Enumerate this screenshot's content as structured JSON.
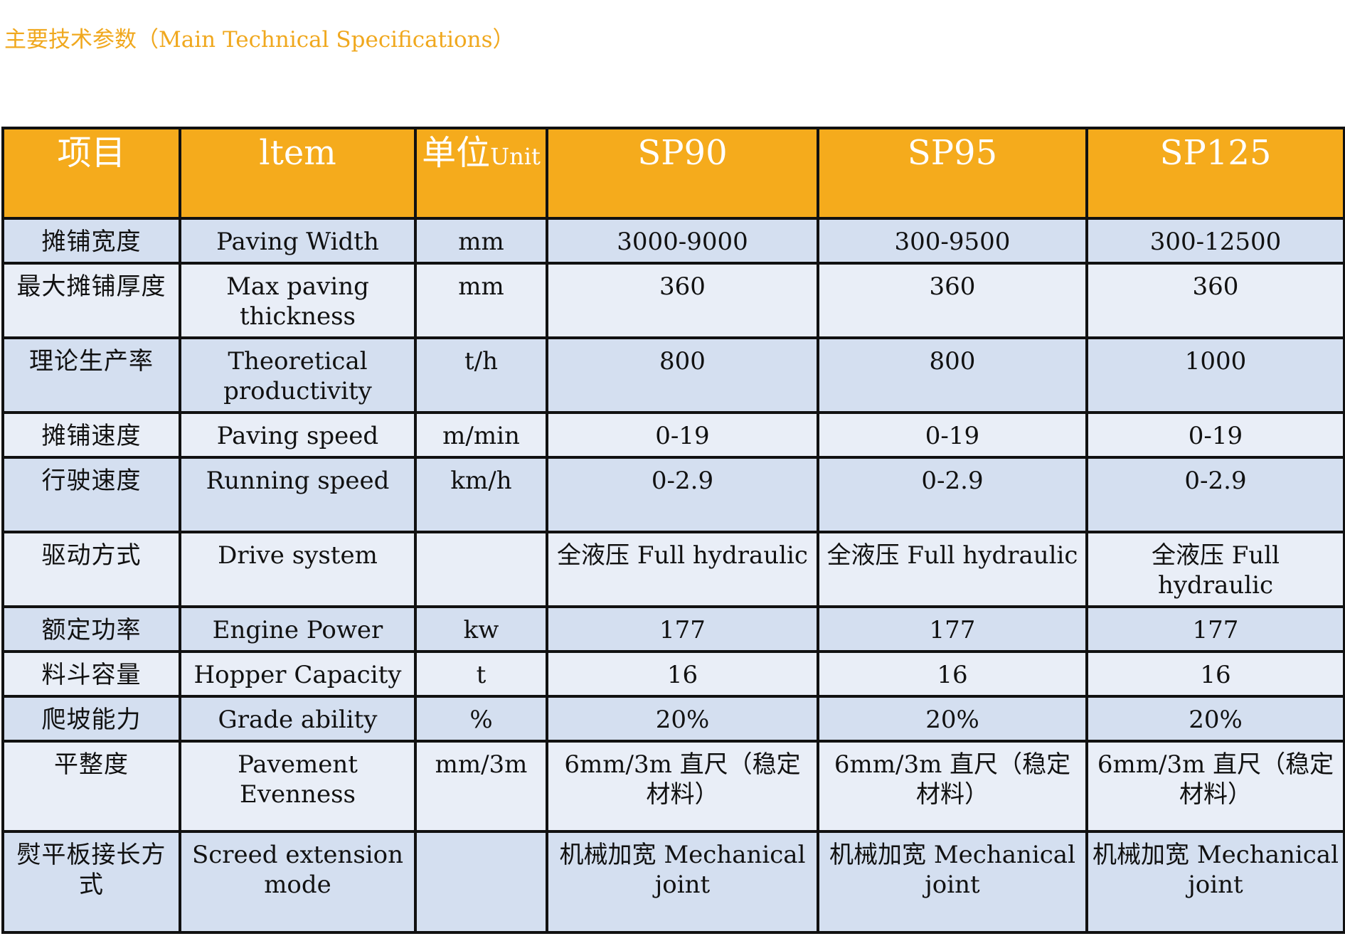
{
  "title": "主要技术参数（Main Technical Specifications）",
  "header": {
    "col1": "项目",
    "col2": "ltem",
    "col3_cn": "单位",
    "col3_en": "Unit",
    "col4": "SP90",
    "col5": "SP95",
    "col6": "SP125"
  },
  "rows": [
    {
      "cn": "摊铺宽度",
      "en": "Paving Width",
      "unit": "mm",
      "sp90": "3000-9000",
      "sp95": "300-9500",
      "sp125": "300-12500"
    },
    {
      "cn": "最大摊铺厚度",
      "en": "Max paving thickness",
      "unit": "mm",
      "sp90": "360",
      "sp95": "360",
      "sp125": "360"
    },
    {
      "cn": "理论生产率",
      "en": "Theoretical productivity",
      "unit": "t/h",
      "sp90": "800",
      "sp95": "800",
      "sp125": "1000"
    },
    {
      "cn": "摊铺速度",
      "en": "Paving speed",
      "unit": "m/min",
      "sp90": "0-19",
      "sp95": "0-19",
      "sp125": "0-19"
    },
    {
      "cn": "行驶速度",
      "en": "Running speed",
      "unit": "km/h",
      "sp90": "0-2.9",
      "sp95": "0-2.9",
      "sp125": "0-2.9"
    },
    {
      "cn": "驱动方式",
      "en": "Drive system",
      "unit": "",
      "sp90": "全液压 Full hydraulic",
      "sp95": "全液压 Full hydraulic",
      "sp125": "全液压 Full hydraulic"
    },
    {
      "cn": "额定功率",
      "en": "Engine Power",
      "unit": "kw",
      "sp90": "177",
      "sp95": "177",
      "sp125": "177"
    },
    {
      "cn": "料斗容量",
      "en": "Hopper Capacity",
      "unit": "t",
      "sp90": "16",
      "sp95": "16",
      "sp125": "16"
    },
    {
      "cn": "爬坡能力",
      "en": "Grade ability",
      "unit": "%",
      "sp90": "20%",
      "sp95": "20%",
      "sp125": "20%"
    },
    {
      "cn": "平整度",
      "en": "Pavement Evenness",
      "unit": "mm/3m",
      "sp90": "6mm/3m 直尺（稳定材料）",
      "sp95": "6mm/3m 直尺（稳定材料）",
      "sp125": "6mm/3m 直尺（稳定材料）"
    },
    {
      "cn": "熨平板接长方式",
      "en": "Screed extension mode",
      "unit": "",
      "sp90": "机械加宽 Mechanical joint",
      "sp95": "机械加宽 Mechanical joint",
      "sp125": "机械加宽 Mechanical joint"
    }
  ],
  "colors": {
    "header_bg": "#f5ab1c",
    "title": "#f0a81e",
    "row_alt": "#d4dff0",
    "row_light": "#e9eef7"
  }
}
